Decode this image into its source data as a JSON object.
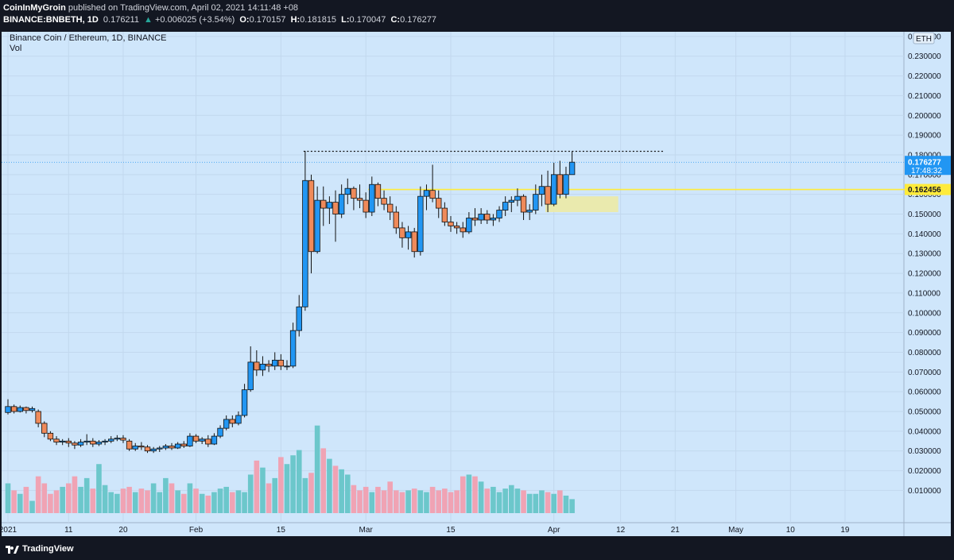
{
  "header": {
    "author": "CoinInMyGroin",
    "published": "published on TradingView.com, April 02, 2021 14:11:48 +08",
    "symbol": "BINANCE:BNBETH, 1D",
    "last": "0.176211",
    "change_arrow": "▲",
    "change": "+0.006025 (+3.54%)",
    "o_label": "O:",
    "o": "0.170157",
    "h_label": "H:",
    "h": "0.181815",
    "l_label": "L:",
    "l": "0.170047",
    "c_label": "C:",
    "c": "0.176277"
  },
  "chart_data": {
    "type": "candlestick",
    "title": "Binance Coin / Ethereum, 1D, BINANCE",
    "volume_label": "Vol",
    "currency_badge": "ETH",
    "ylim": [
      0.004,
      0.25
    ],
    "y_ticks": [
      "0.010000",
      "0.020000",
      "0.030000",
      "0.040000",
      "0.050000",
      "0.060000",
      "0.070000",
      "0.080000",
      "0.090000",
      "0.100000",
      "0.110000",
      "0.120000",
      "0.130000",
      "0.140000",
      "0.150000",
      "0.160000",
      "0.170000",
      "0.180000",
      "0.190000",
      "0.200000",
      "0.210000",
      "0.220000",
      "0.230000",
      "0.240000"
    ],
    "x_ticks": [
      {
        "day": 0,
        "label": "2021"
      },
      {
        "day": 10,
        "label": "11"
      },
      {
        "day": 19,
        "label": "20"
      },
      {
        "day": 31,
        "label": "Feb"
      },
      {
        "day": 45,
        "label": "15"
      },
      {
        "day": 59,
        "label": "Mar"
      },
      {
        "day": 73,
        "label": "15"
      },
      {
        "day": 90,
        "label": "Apr"
      },
      {
        "day": 101,
        "label": "12"
      },
      {
        "day": 110,
        "label": "21"
      },
      {
        "day": 120,
        "label": "May"
      },
      {
        "day": 129,
        "label": "10"
      },
      {
        "day": 138,
        "label": "19"
      }
    ],
    "grid": true,
    "candles": [
      [
        0.0495,
        0.0562,
        0.0485,
        0.0525
      ],
      [
        0.0525,
        0.0535,
        0.049,
        0.05
      ],
      [
        0.05,
        0.053,
        0.0495,
        0.052
      ],
      [
        0.052,
        0.0525,
        0.049,
        0.0505
      ],
      [
        0.0505,
        0.0525,
        0.0495,
        0.0515
      ],
      [
        0.05,
        0.051,
        0.042,
        0.044
      ],
      [
        0.044,
        0.045,
        0.037,
        0.039
      ],
      [
        0.039,
        0.04,
        0.035,
        0.036
      ],
      [
        0.036,
        0.0375,
        0.033,
        0.0345
      ],
      [
        0.0345,
        0.036,
        0.033,
        0.035
      ],
      [
        0.035,
        0.0365,
        0.032,
        0.034
      ],
      [
        0.034,
        0.035,
        0.031,
        0.033
      ],
      [
        0.033,
        0.036,
        0.032,
        0.0345
      ],
      [
        0.0345,
        0.0385,
        0.033,
        0.035
      ],
      [
        0.035,
        0.0365,
        0.032,
        0.0335
      ],
      [
        0.0335,
        0.0355,
        0.0325,
        0.0345
      ],
      [
        0.0345,
        0.036,
        0.033,
        0.035
      ],
      [
        0.035,
        0.0375,
        0.034,
        0.036
      ],
      [
        0.036,
        0.038,
        0.035,
        0.0365
      ],
      [
        0.0365,
        0.038,
        0.034,
        0.0355
      ],
      [
        0.035,
        0.036,
        0.03,
        0.031
      ],
      [
        0.031,
        0.034,
        0.03,
        0.0325
      ],
      [
        0.0325,
        0.0345,
        0.0305,
        0.032
      ],
      [
        0.032,
        0.033,
        0.029,
        0.03
      ],
      [
        0.03,
        0.032,
        0.029,
        0.031
      ],
      [
        0.031,
        0.0325,
        0.0295,
        0.0315
      ],
      [
        0.0315,
        0.0335,
        0.0305,
        0.0325
      ],
      [
        0.0325,
        0.034,
        0.0305,
        0.0315
      ],
      [
        0.0315,
        0.0345,
        0.031,
        0.0335
      ],
      [
        0.0335,
        0.035,
        0.0315,
        0.0325
      ],
      [
        0.0325,
        0.039,
        0.032,
        0.0375
      ],
      [
        0.0375,
        0.0385,
        0.034,
        0.035
      ],
      [
        0.035,
        0.037,
        0.0335,
        0.036
      ],
      [
        0.036,
        0.038,
        0.032,
        0.0335
      ],
      [
        0.0335,
        0.039,
        0.033,
        0.0375
      ],
      [
        0.0375,
        0.043,
        0.0365,
        0.0415
      ],
      [
        0.0415,
        0.048,
        0.0405,
        0.046
      ],
      [
        0.046,
        0.048,
        0.042,
        0.044
      ],
      [
        0.044,
        0.05,
        0.043,
        0.048
      ],
      [
        0.048,
        0.064,
        0.047,
        0.061
      ],
      [
        0.061,
        0.083,
        0.06,
        0.075
      ],
      [
        0.075,
        0.081,
        0.068,
        0.071
      ],
      [
        0.071,
        0.078,
        0.068,
        0.074
      ],
      [
        0.074,
        0.076,
        0.07,
        0.073
      ],
      [
        0.073,
        0.08,
        0.071,
        0.076
      ],
      [
        0.076,
        0.079,
        0.071,
        0.073
      ],
      [
        0.073,
        0.076,
        0.071,
        0.073
      ],
      [
        0.073,
        0.095,
        0.072,
        0.091
      ],
      [
        0.091,
        0.109,
        0.088,
        0.103
      ],
      [
        0.103,
        0.182,
        0.101,
        0.167
      ],
      [
        0.167,
        0.17,
        0.12,
        0.131
      ],
      [
        0.131,
        0.164,
        0.13,
        0.157
      ],
      [
        0.157,
        0.164,
        0.144,
        0.153
      ],
      [
        0.153,
        0.159,
        0.145,
        0.156
      ],
      [
        0.156,
        0.162,
        0.136,
        0.15
      ],
      [
        0.15,
        0.165,
        0.148,
        0.16
      ],
      [
        0.16,
        0.168,
        0.155,
        0.163
      ],
      [
        0.163,
        0.164,
        0.152,
        0.158
      ],
      [
        0.158,
        0.165,
        0.153,
        0.157
      ],
      [
        0.157,
        0.161,
        0.148,
        0.151
      ],
      [
        0.151,
        0.169,
        0.149,
        0.165
      ],
      [
        0.165,
        0.166,
        0.154,
        0.158
      ],
      [
        0.158,
        0.162,
        0.152,
        0.155
      ],
      [
        0.155,
        0.159,
        0.147,
        0.151
      ],
      [
        0.151,
        0.154,
        0.14,
        0.143
      ],
      [
        0.143,
        0.146,
        0.133,
        0.138
      ],
      [
        0.138,
        0.144,
        0.132,
        0.141
      ],
      [
        0.141,
        0.143,
        0.128,
        0.131
      ],
      [
        0.131,
        0.164,
        0.129,
        0.159
      ],
      [
        0.159,
        0.165,
        0.152,
        0.162
      ],
      [
        0.162,
        0.175,
        0.156,
        0.158
      ],
      [
        0.158,
        0.162,
        0.148,
        0.153
      ],
      [
        0.153,
        0.156,
        0.144,
        0.146
      ],
      [
        0.146,
        0.149,
        0.141,
        0.144
      ],
      [
        0.144,
        0.146,
        0.14,
        0.143
      ],
      [
        0.143,
        0.146,
        0.138,
        0.141
      ],
      [
        0.141,
        0.151,
        0.14,
        0.148
      ],
      [
        0.148,
        0.153,
        0.144,
        0.147
      ],
      [
        0.147,
        0.153,
        0.145,
        0.15
      ],
      [
        0.15,
        0.152,
        0.145,
        0.147
      ],
      [
        0.147,
        0.15,
        0.144,
        0.148
      ],
      [
        0.148,
        0.154,
        0.146,
        0.152
      ],
      [
        0.152,
        0.159,
        0.149,
        0.156
      ],
      [
        0.156,
        0.159,
        0.151,
        0.157
      ],
      [
        0.157,
        0.163,
        0.154,
        0.159
      ],
      [
        0.159,
        0.16,
        0.147,
        0.151
      ],
      [
        0.151,
        0.155,
        0.147,
        0.152
      ],
      [
        0.152,
        0.165,
        0.15,
        0.16
      ],
      [
        0.16,
        0.17,
        0.154,
        0.164
      ],
      [
        0.164,
        0.172,
        0.151,
        0.155
      ],
      [
        0.155,
        0.176,
        0.154,
        0.17
      ],
      [
        0.17,
        0.177,
        0.158,
        0.16
      ],
      [
        0.16,
        0.174,
        0.158,
        0.17
      ],
      [
        0.17,
        0.1818,
        0.17,
        0.1763
      ]
    ],
    "volume_max": 0.068,
    "volumes": [
      0.017,
      0.013,
      0.011,
      0.015,
      0.007,
      0.021,
      0.017,
      0.011,
      0.013,
      0.015,
      0.017,
      0.021,
      0.015,
      0.02,
      0.014,
      0.028,
      0.016,
      0.012,
      0.011,
      0.014,
      0.015,
      0.012,
      0.014,
      0.013,
      0.017,
      0.012,
      0.02,
      0.017,
      0.013,
      0.011,
      0.017,
      0.014,
      0.011,
      0.01,
      0.012,
      0.014,
      0.015,
      0.012,
      0.013,
      0.012,
      0.022,
      0.03,
      0.026,
      0.017,
      0.02,
      0.032,
      0.028,
      0.033,
      0.036,
      0.02,
      0.023,
      0.05,
      0.037,
      0.031,
      0.027,
      0.025,
      0.022,
      0.016,
      0.013,
      0.015,
      0.012,
      0.015,
      0.013,
      0.018,
      0.013,
      0.012,
      0.013,
      0.014,
      0.013,
      0.012,
      0.015,
      0.013,
      0.014,
      0.012,
      0.013,
      0.021,
      0.022,
      0.021,
      0.018,
      0.014,
      0.015,
      0.012,
      0.014,
      0.016,
      0.014,
      0.013,
      0.011,
      0.011,
      0.013,
      0.012,
      0.011,
      0.013,
      0.01,
      0.008
    ],
    "volumes_raw_note": "",
    "current_price": "0.176277",
    "countdown": "17:48:32",
    "level_price": "0.162456",
    "level_value": 0.162456,
    "resistance_value": 0.1818,
    "zone": {
      "from_day": 89,
      "to_day": 101,
      "low": 0.151,
      "high": 0.159
    },
    "colors": {
      "background": "#cfe6fb",
      "up": "#2196f3",
      "down": "#ef8a5a",
      "wick": "#111111",
      "vol_up": "#6cc7cb",
      "vol_down": "#f0a3b4",
      "level": "#ffeb3b",
      "zone": "#eeeaa0",
      "price_badge": "#2196f3"
    }
  },
  "footer": {
    "brand": "TradingView"
  }
}
